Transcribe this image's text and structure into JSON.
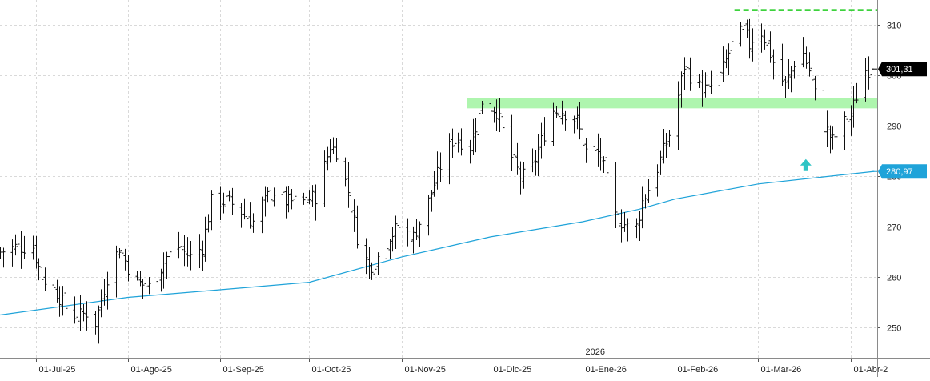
{
  "colors": {
    "background": "#ffffff",
    "grid": "#d9d9d9",
    "bar": "#111111",
    "moving_average": "#1fa3d9",
    "resistance_line": "#22cc22",
    "support_band": "#aef5ae",
    "arrow": "#2ec4c4",
    "price_tag_bg": "#000000",
    "ma_tag_bg": "#1fa3d9",
    "axis_text": "#222222"
  },
  "chart_data": {
    "type": "ohlc",
    "instrument_name": "",
    "y_axis": {
      "min": 244,
      "max": 315,
      "ticks": [
        250,
        260,
        270,
        280,
        290,
        300,
        310
      ]
    },
    "x_axis": {
      "start": "2025-06-19",
      "end": "2026-04-10",
      "tick_labels": [
        {
          "date": "2025-07-01",
          "label": "01-Jul-25"
        },
        {
          "date": "2025-08-01",
          "label": "01-Ago-25"
        },
        {
          "date": "2025-09-01",
          "label": "01-Sep-25"
        },
        {
          "date": "2025-10-01",
          "label": "01-Oct-25"
        },
        {
          "date": "2025-11-01",
          "label": "01-Nov-25"
        },
        {
          "date": "2025-12-01",
          "label": "01-Dic-25"
        },
        {
          "date": "2026-01-01",
          "label": "01-Ene-26"
        },
        {
          "date": "2026-02-01",
          "label": "01-Feb-26"
        },
        {
          "date": "2026-03-01",
          "label": "01-Mar-26"
        },
        {
          "date": "2026-04-01",
          "label": "01-Abr-2"
        }
      ],
      "year_separator": {
        "date": "2026-01-01",
        "label": "2026"
      }
    },
    "grid": true,
    "price_path": [
      [
        "2025-06-19",
        265
      ],
      [
        "2025-06-24",
        266
      ],
      [
        "2025-06-30",
        266
      ],
      [
        "2025-07-03",
        260
      ],
      [
        "2025-07-08",
        257
      ],
      [
        "2025-07-11",
        254
      ],
      [
        "2025-07-15",
        252
      ],
      [
        "2025-07-18",
        253
      ],
      [
        "2025-07-21",
        251
      ],
      [
        "2025-07-25",
        260
      ],
      [
        "2025-07-29",
        266
      ],
      [
        "2025-08-01",
        262
      ],
      [
        "2025-08-04",
        259
      ],
      [
        "2025-08-08",
        258
      ],
      [
        "2025-08-14",
        264
      ],
      [
        "2025-08-18",
        266
      ],
      [
        "2025-08-22",
        264
      ],
      [
        "2025-08-26",
        266
      ],
      [
        "2025-08-29",
        275
      ],
      [
        "2025-09-04",
        275
      ],
      [
        "2025-09-08",
        273
      ],
      [
        "2025-09-12",
        271
      ],
      [
        "2025-09-17",
        276
      ],
      [
        "2025-09-19",
        277
      ],
      [
        "2025-09-23",
        275
      ],
      [
        "2025-09-29",
        275
      ],
      [
        "2025-10-03",
        276
      ],
      [
        "2025-10-08",
        286
      ],
      [
        "2025-10-10",
        285
      ],
      [
        "2025-10-14",
        277
      ],
      [
        "2025-10-17",
        268
      ],
      [
        "2025-10-21",
        262
      ],
      [
        "2025-10-23",
        263
      ],
      [
        "2025-10-28",
        268
      ],
      [
        "2025-10-31",
        270
      ],
      [
        "2025-11-05",
        268
      ],
      [
        "2025-11-10",
        275
      ],
      [
        "2025-11-14",
        282
      ],
      [
        "2025-11-18",
        287
      ],
      [
        "2025-11-21",
        287
      ],
      [
        "2025-11-24",
        286
      ],
      [
        "2025-11-27",
        292
      ],
      [
        "2025-11-28",
        295
      ],
      [
        "2025-12-03",
        293
      ],
      [
        "2025-12-07",
        285
      ],
      [
        "2025-12-11",
        280
      ],
      [
        "2025-12-14",
        280
      ],
      [
        "2025-12-18",
        287
      ],
      [
        "2025-12-22",
        293
      ],
      [
        "2025-12-25",
        293
      ],
      [
        "2025-12-30",
        291
      ],
      [
        "2026-01-02",
        285
      ],
      [
        "2026-01-07",
        284
      ],
      [
        "2026-01-12",
        272
      ],
      [
        "2026-01-16",
        270
      ],
      [
        "2026-01-19",
        270
      ],
      [
        "2026-01-21",
        275
      ],
      [
        "2026-01-25",
        280
      ],
      [
        "2026-01-28",
        285
      ],
      [
        "2026-01-31",
        290
      ],
      [
        "2026-02-04",
        302
      ],
      [
        "2026-02-08",
        298
      ],
      [
        "2026-02-12",
        297
      ],
      [
        "2026-02-16",
        300
      ],
      [
        "2026-02-20",
        306
      ],
      [
        "2026-02-24",
        309
      ],
      [
        "2026-02-26",
        306
      ],
      [
        "2026-03-01",
        310
      ],
      [
        "2026-03-04",
        306
      ],
      [
        "2026-03-07",
        301
      ],
      [
        "2026-03-10",
        298
      ],
      [
        "2026-03-12",
        301
      ],
      [
        "2026-03-15",
        306
      ],
      [
        "2026-03-18",
        301
      ],
      [
        "2026-03-21",
        294
      ],
      [
        "2026-03-23",
        290
      ],
      [
        "2026-03-26",
        287
      ],
      [
        "2026-03-29",
        290
      ],
      [
        "2026-04-01",
        292
      ],
      [
        "2026-04-03",
        296
      ],
      [
        "2026-04-05",
        301
      ],
      [
        "2026-04-08",
        301.31
      ]
    ],
    "moving_average": [
      [
        "2025-06-19",
        252.5
      ],
      [
        "2025-08-01",
        256
      ],
      [
        "2025-09-01",
        257.5
      ],
      [
        "2025-10-01",
        259
      ],
      [
        "2025-11-01",
        264
      ],
      [
        "2025-12-01",
        268
      ],
      [
        "2026-01-01",
        271
      ],
      [
        "2026-01-20",
        273.5
      ],
      [
        "2026-02-01",
        275.5
      ],
      [
        "2026-03-01",
        278.5
      ],
      [
        "2026-04-09",
        281
      ]
    ],
    "annotations": {
      "resistance": {
        "value": 313,
        "start": "2026-02-21",
        "end": "2026-04-10"
      },
      "support_zone": {
        "low": 293.5,
        "high": 295.5,
        "start": "2025-11-23",
        "end": "2026-04-10"
      },
      "arrow": {
        "date": "2026-03-17",
        "value": 282
      }
    },
    "last_price": {
      "value": 301.31,
      "label": "301,31"
    },
    "ma_last": {
      "value": 280.97,
      "label": "280,97"
    }
  }
}
